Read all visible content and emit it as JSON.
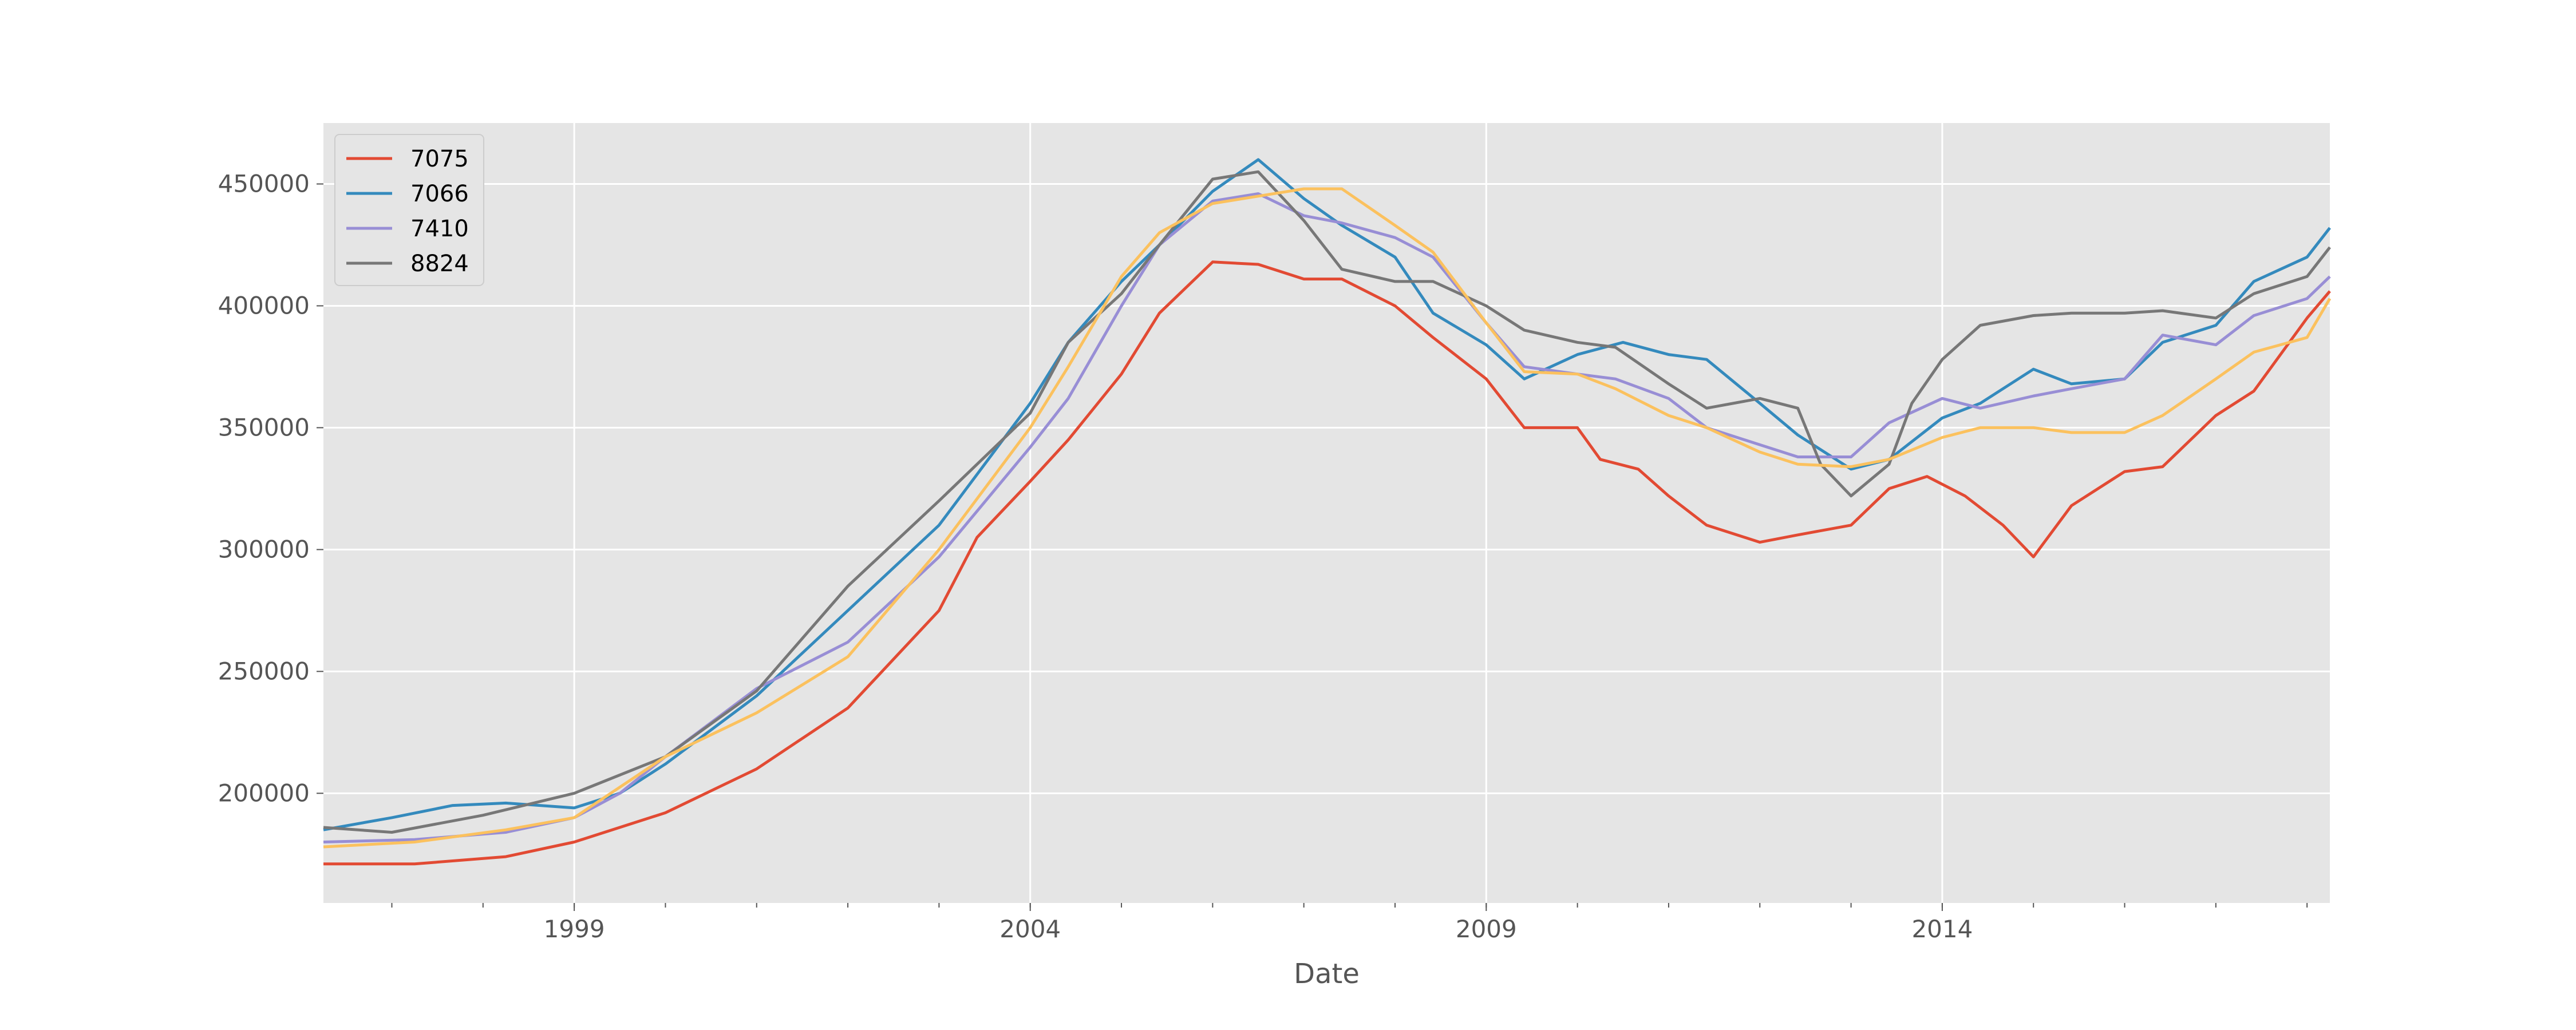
{
  "chart_data": {
    "type": "line",
    "title": "",
    "xlabel": "Date",
    "ylabel": "",
    "xlim": [
      "1996-04",
      "2018-04"
    ],
    "ylim": [
      155000,
      475000
    ],
    "grid": true,
    "legend_position": "upper-left",
    "background": "#e5e5e5",
    "x_ticks": [
      "1999",
      "2004",
      "2009",
      "2014"
    ],
    "y_ticks": [
      "200000",
      "250000",
      "300000",
      "350000",
      "400000",
      "450000"
    ],
    "series": [
      {
        "name": "7075",
        "color": "#e24a33",
        "points": [
          [
            "1996-04",
            171000
          ],
          [
            "1997-04",
            171000
          ],
          [
            "1998-04",
            174000
          ],
          [
            "1999-01",
            180000
          ],
          [
            "2000-01",
            192000
          ],
          [
            "2001-01",
            210000
          ],
          [
            "2002-01",
            235000
          ],
          [
            "2003-01",
            275000
          ],
          [
            "2003-06",
            305000
          ],
          [
            "2004-01",
            328000
          ],
          [
            "2004-06",
            345000
          ],
          [
            "2005-01",
            372000
          ],
          [
            "2005-06",
            397000
          ],
          [
            "2006-01",
            418000
          ],
          [
            "2006-07",
            417000
          ],
          [
            "2007-01",
            411000
          ],
          [
            "2007-06",
            411000
          ],
          [
            "2008-01",
            400000
          ],
          [
            "2008-06",
            387000
          ],
          [
            "2009-01",
            370000
          ],
          [
            "2009-06",
            350000
          ],
          [
            "2010-01",
            350000
          ],
          [
            "2010-04",
            337000
          ],
          [
            "2010-09",
            333000
          ],
          [
            "2011-01",
            322000
          ],
          [
            "2011-06",
            310000
          ],
          [
            "2012-01",
            303000
          ],
          [
            "2012-06",
            306000
          ],
          [
            "2013-01",
            310000
          ],
          [
            "2013-06",
            325000
          ],
          [
            "2013-11",
            330000
          ],
          [
            "2014-04",
            322000
          ],
          [
            "2014-09",
            310000
          ],
          [
            "2015-01",
            297000
          ],
          [
            "2015-06",
            318000
          ],
          [
            "2016-01",
            332000
          ],
          [
            "2016-06",
            334000
          ],
          [
            "2017-01",
            355000
          ],
          [
            "2017-06",
            365000
          ],
          [
            "2018-01",
            395000
          ],
          [
            "2018-04",
            406000
          ]
        ]
      },
      {
        "name": "7066",
        "color": "#348abd",
        "points": [
          [
            "1996-04",
            185000
          ],
          [
            "1997-01",
            190000
          ],
          [
            "1997-09",
            195000
          ],
          [
            "1998-04",
            196000
          ],
          [
            "1999-01",
            194000
          ],
          [
            "1999-07",
            200000
          ],
          [
            "2000-01",
            212000
          ],
          [
            "2001-01",
            240000
          ],
          [
            "2002-01",
            275000
          ],
          [
            "2003-01",
            310000
          ],
          [
            "2004-01",
            360000
          ],
          [
            "2004-06",
            385000
          ],
          [
            "2005-01",
            410000
          ],
          [
            "2005-06",
            425000
          ],
          [
            "2006-01",
            447000
          ],
          [
            "2006-07",
            460000
          ],
          [
            "2007-01",
            444000
          ],
          [
            "2007-06",
            433000
          ],
          [
            "2008-01",
            420000
          ],
          [
            "2008-06",
            397000
          ],
          [
            "2009-01",
            384000
          ],
          [
            "2009-06",
            370000
          ],
          [
            "2010-01",
            380000
          ],
          [
            "2010-07",
            385000
          ],
          [
            "2011-01",
            380000
          ],
          [
            "2011-06",
            378000
          ],
          [
            "2012-01",
            360000
          ],
          [
            "2012-06",
            347000
          ],
          [
            "2013-01",
            333000
          ],
          [
            "2013-06",
            337000
          ],
          [
            "2014-01",
            354000
          ],
          [
            "2014-06",
            360000
          ],
          [
            "2015-01",
            374000
          ],
          [
            "2015-06",
            368000
          ],
          [
            "2016-01",
            370000
          ],
          [
            "2016-06",
            385000
          ],
          [
            "2017-01",
            392000
          ],
          [
            "2017-06",
            410000
          ],
          [
            "2018-01",
            420000
          ],
          [
            "2018-04",
            432000
          ]
        ]
      },
      {
        "name": "7410",
        "color": "#988ed5",
        "points": [
          [
            "1996-04",
            180000
          ],
          [
            "1997-04",
            181000
          ],
          [
            "1998-04",
            184000
          ],
          [
            "1999-01",
            190000
          ],
          [
            "1999-07",
            200000
          ],
          [
            "2000-01",
            215000
          ],
          [
            "2001-01",
            243000
          ],
          [
            "2002-01",
            262000
          ],
          [
            "2003-01",
            297000
          ],
          [
            "2004-01",
            342000
          ],
          [
            "2004-06",
            362000
          ],
          [
            "2005-01",
            400000
          ],
          [
            "2005-06",
            425000
          ],
          [
            "2006-01",
            443000
          ],
          [
            "2006-07",
            446000
          ],
          [
            "2007-01",
            437000
          ],
          [
            "2007-06",
            434000
          ],
          [
            "2008-01",
            428000
          ],
          [
            "2008-06",
            420000
          ],
          [
            "2009-01",
            393000
          ],
          [
            "2009-06",
            375000
          ],
          [
            "2010-01",
            372000
          ],
          [
            "2010-06",
            370000
          ],
          [
            "2011-01",
            362000
          ],
          [
            "2011-06",
            350000
          ],
          [
            "2012-01",
            343000
          ],
          [
            "2012-06",
            338000
          ],
          [
            "2013-01",
            338000
          ],
          [
            "2013-06",
            352000
          ],
          [
            "2014-01",
            362000
          ],
          [
            "2014-06",
            358000
          ],
          [
            "2015-01",
            363000
          ],
          [
            "2015-06",
            366000
          ],
          [
            "2016-01",
            370000
          ],
          [
            "2016-06",
            388000
          ],
          [
            "2017-01",
            384000
          ],
          [
            "2017-06",
            396000
          ],
          [
            "2018-01",
            403000
          ],
          [
            "2018-04",
            412000
          ]
        ]
      },
      {
        "name": "8824",
        "color": "#777777",
        "points": [
          [
            "1996-04",
            186000
          ],
          [
            "1997-01",
            184000
          ],
          [
            "1998-01",
            191000
          ],
          [
            "1999-01",
            200000
          ],
          [
            "2000-01",
            215000
          ],
          [
            "2001-01",
            242000
          ],
          [
            "2002-01",
            285000
          ],
          [
            "2003-01",
            320000
          ],
          [
            "2004-01",
            356000
          ],
          [
            "2004-06",
            385000
          ],
          [
            "2005-01",
            405000
          ],
          [
            "2005-06",
            425000
          ],
          [
            "2006-01",
            452000
          ],
          [
            "2006-07",
            455000
          ],
          [
            "2007-01",
            435000
          ],
          [
            "2007-06",
            415000
          ],
          [
            "2008-01",
            410000
          ],
          [
            "2008-06",
            410000
          ],
          [
            "2009-01",
            400000
          ],
          [
            "2009-06",
            390000
          ],
          [
            "2010-01",
            385000
          ],
          [
            "2010-06",
            383000
          ],
          [
            "2011-01",
            368000
          ],
          [
            "2011-06",
            358000
          ],
          [
            "2012-01",
            362000
          ],
          [
            "2012-06",
            358000
          ],
          [
            "2012-09",
            335000
          ],
          [
            "2013-01",
            322000
          ],
          [
            "2013-06",
            335000
          ],
          [
            "2013-09",
            360000
          ],
          [
            "2014-01",
            378000
          ],
          [
            "2014-06",
            392000
          ],
          [
            "2015-01",
            396000
          ],
          [
            "2015-06",
            397000
          ],
          [
            "2016-01",
            397000
          ],
          [
            "2016-06",
            398000
          ],
          [
            "2017-01",
            395000
          ],
          [
            "2017-06",
            405000
          ],
          [
            "2018-01",
            412000
          ],
          [
            "2018-04",
            424000
          ]
        ]
      },
      {
        "name": "",
        "color": "#fbc15e",
        "points": [
          [
            "1996-04",
            178000
          ],
          [
            "1997-04",
            180000
          ],
          [
            "1998-04",
            185000
          ],
          [
            "1999-01",
            190000
          ],
          [
            "2000-01",
            215000
          ],
          [
            "2001-01",
            233000
          ],
          [
            "2002-01",
            256000
          ],
          [
            "2003-01",
            300000
          ],
          [
            "2004-01",
            350000
          ],
          [
            "2004-06",
            375000
          ],
          [
            "2005-01",
            412000
          ],
          [
            "2005-06",
            430000
          ],
          [
            "2006-01",
            442000
          ],
          [
            "2006-07",
            445000
          ],
          [
            "2007-01",
            448000
          ],
          [
            "2007-06",
            448000
          ],
          [
            "2008-01",
            433000
          ],
          [
            "2008-06",
            422000
          ],
          [
            "2009-01",
            393000
          ],
          [
            "2009-06",
            373000
          ],
          [
            "2010-01",
            372000
          ],
          [
            "2010-06",
            366000
          ],
          [
            "2011-01",
            355000
          ],
          [
            "2011-06",
            350000
          ],
          [
            "2012-01",
            340000
          ],
          [
            "2012-06",
            335000
          ],
          [
            "2013-01",
            334000
          ],
          [
            "2013-06",
            337000
          ],
          [
            "2014-01",
            346000
          ],
          [
            "2014-06",
            350000
          ],
          [
            "2015-01",
            350000
          ],
          [
            "2015-06",
            348000
          ],
          [
            "2016-01",
            348000
          ],
          [
            "2016-06",
            355000
          ],
          [
            "2017-01",
            370000
          ],
          [
            "2017-06",
            381000
          ],
          [
            "2018-01",
            387000
          ],
          [
            "2018-04",
            403000
          ]
        ]
      }
    ]
  }
}
